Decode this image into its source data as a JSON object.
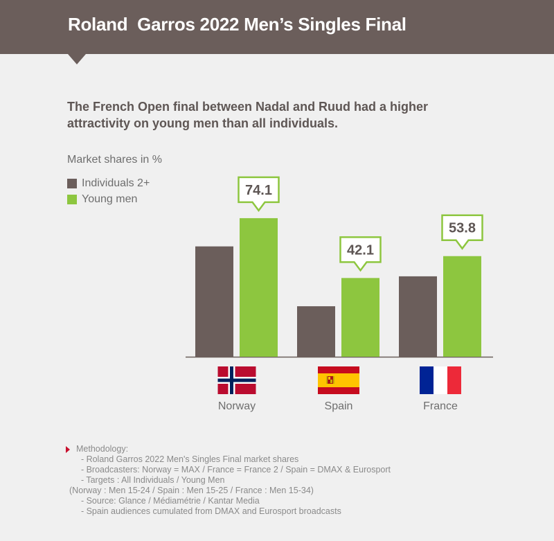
{
  "header": {
    "title": "Roland  Garros 2022 Men’s Singles Final"
  },
  "subtitle": "The French Open final between Nadal and Ruud had a higher attractivity on young men than all individuals.",
  "colors": {
    "header_bg": "#6b5e5b",
    "individuals": "#6b5e5b",
    "young_men": "#8dc63f",
    "footnote_marker": "#c8102e"
  },
  "chart_data": {
    "type": "bar",
    "ylabel": "Market shares in %",
    "categories": [
      "Norway",
      "Spain",
      "France"
    ],
    "series": [
      {
        "name": "Individuals 2+",
        "values": [
          59,
          27,
          43
        ]
      },
      {
        "name": "Young men",
        "values": [
          74.1,
          42.1,
          53.8
        ]
      }
    ],
    "data_labels": [
      "74.1",
      "42.1",
      "53.8"
    ],
    "ylim": [
      0,
      80
    ],
    "legend": "top-left",
    "grid": false
  },
  "flags": [
    {
      "country": "Norway",
      "icon": "norway-flag-icon"
    },
    {
      "country": "Spain",
      "icon": "spain-flag-icon"
    },
    {
      "country": "France",
      "icon": "france-flag-icon"
    }
  ],
  "footnote": {
    "lines": [
      "Methodology:",
      "  - Roland Garros 2022 Men's Singles Final market shares",
      "  - Broadcasters: Norway = MAX / France = France 2 / Spain = DMAX & Eurosport",
      "  - Targets : All Individuals / Young Men",
      "(Norway : Men 15-24 / Spain : Men 15-25 / France : Men 15-34)",
      "  - Source: Glance / Médiamétrie / Kantar Media",
      "  - Spain audiences cumulated from DMAX and Eurosport broadcasts"
    ]
  }
}
